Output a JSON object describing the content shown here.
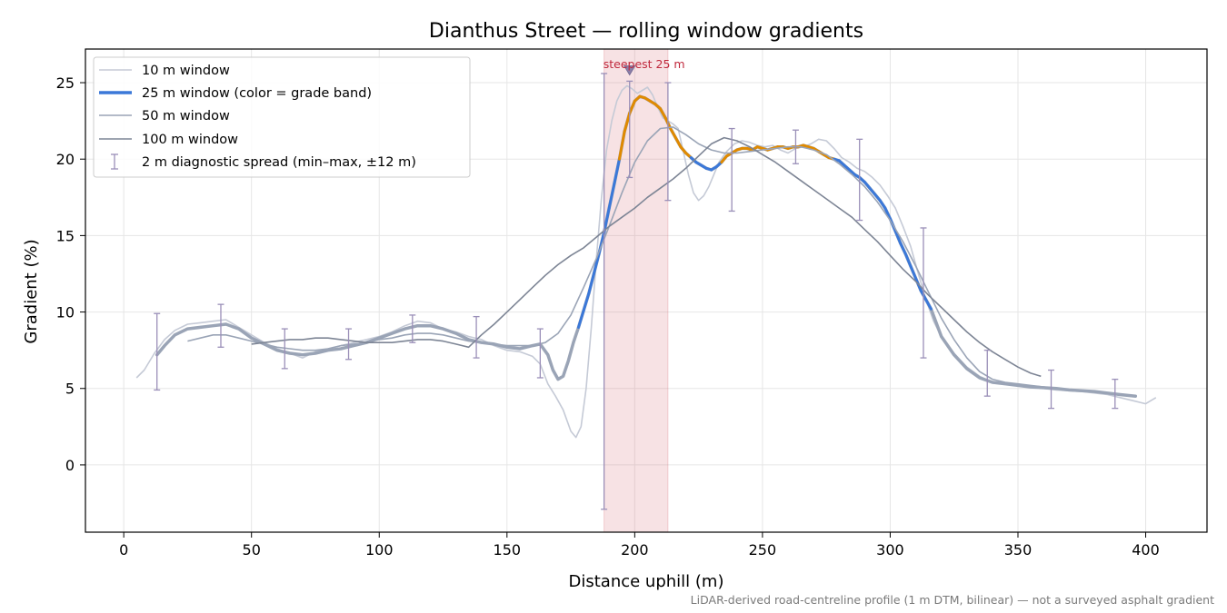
{
  "chart_data": {
    "type": "line",
    "title": "Dianthus Street — rolling window gradients",
    "xlabel": "Distance uphill (m)",
    "ylabel": "Gradient (%)",
    "xlim": [
      -15,
      424
    ],
    "ylim": [
      -4.4,
      27.2
    ],
    "xticks": [
      0,
      50,
      100,
      150,
      200,
      250,
      300,
      350,
      400
    ],
    "yticks": [
      0,
      5,
      10,
      15,
      20,
      25
    ],
    "grid": true,
    "legend_position": "upper-left",
    "footnote": "LiDAR-derived road-centreline profile (1 m DTM, bilinear) — not a surveyed asphalt gradient",
    "highlight": {
      "x0": 188,
      "x1": 213,
      "label": "steepest 25 m",
      "marker_x": 198,
      "marker_y": 25.8
    },
    "series": [
      {
        "name": "10 m window",
        "color": "#c5cad6",
        "x": [
          5,
          8,
          12,
          16,
          20,
          25,
          30,
          35,
          40,
          45,
          50,
          55,
          60,
          65,
          70,
          75,
          80,
          85,
          90,
          95,
          100,
          105,
          110,
          115,
          120,
          125,
          130,
          135,
          140,
          145,
          150,
          155,
          160,
          163,
          166,
          169,
          172,
          175,
          177,
          179,
          181,
          183,
          185,
          187,
          189,
          191,
          193,
          195,
          197,
          199,
          201,
          203,
          205,
          207,
          209,
          211,
          213,
          215,
          217,
          219,
          221,
          223,
          225,
          227,
          229,
          231,
          233,
          236,
          239,
          242,
          245,
          248,
          251,
          254,
          257,
          260,
          263,
          266,
          269,
          272,
          275,
          278,
          281,
          284,
          287,
          290,
          293,
          296,
          299,
          302,
          305,
          308,
          311,
          314,
          317,
          320,
          325,
          330,
          335,
          340,
          345,
          350,
          355,
          360,
          365,
          370,
          375,
          380,
          385,
          390,
          395,
          400,
          404
        ],
        "values": [
          5.7,
          6.2,
          7.3,
          8.2,
          8.8,
          9.2,
          9.3,
          9.4,
          9.5,
          9.0,
          8.5,
          8.0,
          7.6,
          7.3,
          7.0,
          7.4,
          7.6,
          7.8,
          8.0,
          8.2,
          8.4,
          8.7,
          9.1,
          9.4,
          9.3,
          8.9,
          8.7,
          8.4,
          8.2,
          7.8,
          7.5,
          7.4,
          7.1,
          6.6,
          5.3,
          4.5,
          3.6,
          2.2,
          1.8,
          2.5,
          5.0,
          9.0,
          13.5,
          17.5,
          20.6,
          22.5,
          23.8,
          24.5,
          24.8,
          24.6,
          24.3,
          24.5,
          24.7,
          24.2,
          23.4,
          22.7,
          22.5,
          22.3,
          22.0,
          20.5,
          19.0,
          17.8,
          17.3,
          17.6,
          18.2,
          19.0,
          19.8,
          20.5,
          21.0,
          21.2,
          21.1,
          20.9,
          20.8,
          20.9,
          20.6,
          20.4,
          20.7,
          20.8,
          21.0,
          21.3,
          21.2,
          20.7,
          20.1,
          19.8,
          19.4,
          19.2,
          18.8,
          18.3,
          17.6,
          16.8,
          15.6,
          14.3,
          12.5,
          10.8,
          9.4,
          8.4,
          7.3,
          6.4,
          5.8,
          5.4,
          5.3,
          5.2,
          5.1,
          5.0,
          4.9,
          4.85,
          4.8,
          4.7,
          4.6,
          4.4,
          4.2,
          4.0,
          4.4
        ]
      },
      {
        "name": "25 m window (color = grade band)",
        "color": "#3b78d8",
        "color_steep": "#e08a00",
        "x": [
          13,
          16,
          20,
          25,
          30,
          35,
          40,
          45,
          50,
          55,
          60,
          65,
          70,
          75,
          80,
          85,
          90,
          95,
          100,
          105,
          110,
          115,
          120,
          125,
          130,
          135,
          140,
          145,
          150,
          155,
          160,
          163,
          166,
          168,
          170,
          172,
          174,
          176,
          178,
          180,
          182,
          184,
          186,
          188,
          190,
          192,
          194,
          196,
          198,
          200,
          202,
          204,
          206,
          208,
          210,
          212,
          214,
          216,
          218,
          220,
          222,
          224,
          226,
          228,
          230,
          232,
          234,
          236,
          238,
          240,
          242,
          244,
          246,
          248,
          250,
          252,
          254,
          256,
          258,
          260,
          262,
          264,
          266,
          268,
          270,
          272,
          274,
          276,
          278,
          280,
          282,
          284,
          286,
          288,
          290,
          292,
          294,
          296,
          298,
          300,
          302,
          304,
          306,
          308,
          310,
          312,
          314,
          316,
          320,
          325,
          330,
          335,
          340,
          345,
          350,
          355,
          360,
          365,
          370,
          375,
          380,
          385,
          390,
          396
        ],
        "values": [
          7.2,
          7.8,
          8.5,
          8.9,
          9.0,
          9.1,
          9.2,
          8.9,
          8.3,
          7.9,
          7.5,
          7.3,
          7.2,
          7.3,
          7.5,
          7.6,
          7.8,
          8.0,
          8.3,
          8.6,
          8.9,
          9.1,
          9.1,
          8.9,
          8.6,
          8.2,
          8.0,
          7.9,
          7.7,
          7.6,
          7.8,
          7.9,
          7.2,
          6.2,
          5.6,
          5.8,
          6.8,
          8.0,
          9.0,
          10.1,
          11.2,
          12.5,
          13.8,
          15.2,
          16.8,
          18.4,
          20.0,
          21.8,
          23.0,
          23.8,
          24.1,
          24.0,
          23.8,
          23.6,
          23.3,
          22.7,
          22.0,
          21.4,
          20.8,
          20.4,
          20.1,
          19.8,
          19.6,
          19.4,
          19.3,
          19.5,
          19.8,
          20.2,
          20.4,
          20.6,
          20.7,
          20.7,
          20.6,
          20.8,
          20.7,
          20.6,
          20.7,
          20.8,
          20.8,
          20.7,
          20.8,
          20.8,
          20.9,
          20.8,
          20.7,
          20.5,
          20.3,
          20.1,
          20.0,
          19.9,
          19.6,
          19.3,
          19.0,
          18.8,
          18.5,
          18.1,
          17.7,
          17.3,
          16.8,
          16.1,
          15.3,
          14.5,
          13.8,
          13.0,
          12.2,
          11.4,
          10.8,
          10.2,
          8.4,
          7.2,
          6.3,
          5.7,
          5.4,
          5.3,
          5.2,
          5.1,
          5.05,
          5.0,
          4.9,
          4.85,
          4.8,
          4.7,
          4.6,
          4.5
        ]
      },
      {
        "name": "50 m window",
        "color": "#9aa4b6",
        "x": [
          25,
          30,
          35,
          40,
          45,
          50,
          55,
          60,
          65,
          70,
          75,
          80,
          85,
          90,
          95,
          100,
          105,
          110,
          115,
          120,
          125,
          130,
          135,
          140,
          145,
          150,
          155,
          160,
          165,
          170,
          175,
          180,
          185,
          190,
          195,
          200,
          205,
          210,
          215,
          220,
          225,
          230,
          235,
          240,
          245,
          250,
          255,
          260,
          265,
          270,
          275,
          280,
          285,
          290,
          295,
          300,
          305,
          310,
          315,
          320,
          325,
          330,
          335,
          340,
          345,
          350,
          355,
          360,
          365,
          370,
          375,
          380,
          385,
          390,
          395
        ],
        "values": [
          8.1,
          8.3,
          8.5,
          8.5,
          8.3,
          8.1,
          7.9,
          7.7,
          7.6,
          7.5,
          7.5,
          7.6,
          7.8,
          7.9,
          8.0,
          8.2,
          8.3,
          8.5,
          8.6,
          8.6,
          8.5,
          8.3,
          8.1,
          8.0,
          7.9,
          7.8,
          7.8,
          7.8,
          8.0,
          8.6,
          9.8,
          11.6,
          13.5,
          15.6,
          17.8,
          19.8,
          21.2,
          22.0,
          22.1,
          21.6,
          21.0,
          20.6,
          20.4,
          20.4,
          20.5,
          20.6,
          20.7,
          20.8,
          20.8,
          20.6,
          20.3,
          19.7,
          19.0,
          18.2,
          17.2,
          16.0,
          14.6,
          13.0,
          11.3,
          9.6,
          8.2,
          7.0,
          6.1,
          5.6,
          5.4,
          5.3,
          5.2,
          5.1,
          5.0,
          4.9,
          4.85,
          4.8,
          4.7,
          4.6,
          4.5
        ]
      },
      {
        "name": "100 m window",
        "color": "#7d8595",
        "x": [
          50,
          55,
          60,
          65,
          70,
          75,
          80,
          85,
          90,
          95,
          100,
          105,
          110,
          115,
          120,
          125,
          130,
          135,
          140,
          145,
          150,
          155,
          160,
          165,
          170,
          175,
          180,
          185,
          190,
          195,
          200,
          205,
          210,
          215,
          220,
          225,
          230,
          235,
          240,
          245,
          250,
          255,
          260,
          265,
          270,
          275,
          280,
          285,
          290,
          295,
          300,
          305,
          310,
          315,
          320,
          325,
          330,
          335,
          340,
          345,
          350,
          355,
          359
        ],
        "values": [
          7.9,
          8.0,
          8.1,
          8.2,
          8.2,
          8.3,
          8.3,
          8.2,
          8.1,
          8.0,
          8.0,
          8.0,
          8.1,
          8.2,
          8.2,
          8.1,
          7.9,
          7.7,
          8.5,
          9.2,
          10.0,
          10.8,
          11.6,
          12.4,
          13.1,
          13.7,
          14.2,
          14.9,
          15.6,
          16.2,
          16.8,
          17.5,
          18.1,
          18.7,
          19.4,
          20.2,
          21.0,
          21.4,
          21.2,
          20.8,
          20.3,
          19.8,
          19.2,
          18.6,
          18.0,
          17.4,
          16.8,
          16.2,
          15.4,
          14.6,
          13.7,
          12.8,
          12.0,
          11.1,
          10.3,
          9.5,
          8.7,
          8.0,
          7.4,
          6.9,
          6.4,
          6.0,
          5.8
        ]
      }
    ],
    "error_bars": {
      "name": "2 m diagnostic spread (min–max, ±12 m)",
      "color": "#9a8fb8",
      "points": [
        {
          "x": 13,
          "min": 4.9,
          "max": 9.9
        },
        {
          "x": 38,
          "min": 7.7,
          "max": 10.5
        },
        {
          "x": 63,
          "min": 6.3,
          "max": 8.9
        },
        {
          "x": 88,
          "min": 6.9,
          "max": 8.9
        },
        {
          "x": 113,
          "min": 8.0,
          "max": 9.8
        },
        {
          "x": 138,
          "min": 7.0,
          "max": 9.7
        },
        {
          "x": 163,
          "min": 5.7,
          "max": 8.9
        },
        {
          "x": 188,
          "min": -2.9,
          "max": 25.6
        },
        {
          "x": 198,
          "min": 18.8,
          "max": 25.1
        },
        {
          "x": 213,
          "min": 17.3,
          "max": 25.0
        },
        {
          "x": 238,
          "min": 16.6,
          "max": 22.0
        },
        {
          "x": 263,
          "min": 19.7,
          "max": 21.9
        },
        {
          "x": 288,
          "min": 16.0,
          "max": 21.3
        },
        {
          "x": 313,
          "min": 7.0,
          "max": 15.5
        },
        {
          "x": 338,
          "min": 4.5,
          "max": 7.5
        },
        {
          "x": 363,
          "min": 3.7,
          "max": 6.2
        },
        {
          "x": 388,
          "min": 3.7,
          "max": 5.6
        }
      ]
    }
  }
}
